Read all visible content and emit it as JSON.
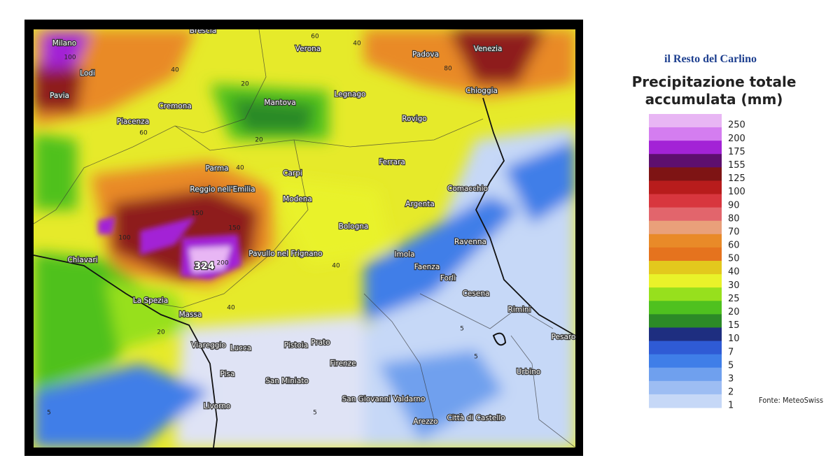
{
  "brand": "il Resto del Carlino",
  "title": "Precipitazione totale accumulata (mm)",
  "source": "Fonte: MeteoSwiss",
  "legend": [
    {
      "value": 250,
      "color": "#e8b6f4"
    },
    {
      "value": 200,
      "color": "#d47df0"
    },
    {
      "value": 175,
      "color": "#a323d6"
    },
    {
      "value": 155,
      "color": "#5e0f6e"
    },
    {
      "value": 125,
      "color": "#7e1414"
    },
    {
      "value": 100,
      "color": "#b81c1c"
    },
    {
      "value": 90,
      "color": "#d8363e"
    },
    {
      "value": 80,
      "color": "#e2656c"
    },
    {
      "value": 70,
      "color": "#e9a07a"
    },
    {
      "value": 60,
      "color": "#e98a28"
    },
    {
      "value": 50,
      "color": "#e5731e"
    },
    {
      "value": 40,
      "color": "#e3c81d"
    },
    {
      "value": 30,
      "color": "#e9f22a"
    },
    {
      "value": 25,
      "color": "#97e01d"
    },
    {
      "value": 20,
      "color": "#4fc11f"
    },
    {
      "value": 15,
      "color": "#2c8a27"
    },
    {
      "value": 10,
      "color": "#1e2e80"
    },
    {
      "value": 7,
      "color": "#2f5bd5"
    },
    {
      "value": 5,
      "color": "#3f7ee8"
    },
    {
      "value": 3,
      "color": "#6fa0ee"
    },
    {
      "value": 2,
      "color": "#9dbdf3"
    },
    {
      "value": 1,
      "color": "#c6d8f7"
    }
  ],
  "map": {
    "max_value": 324,
    "cities": [
      "Brescia",
      "Milano",
      "Verona",
      "Padova",
      "Venezia",
      "Lodi",
      "Legnago",
      "Pavia",
      "Mantova",
      "Chioggia",
      "Cremona",
      "Rovigo",
      "Piacenza",
      "Ferrara",
      "Parma",
      "Carpi",
      "Comacchio",
      "Reggio nell'Emilia",
      "Modena",
      "Argenta",
      "Bologna",
      "Ravenna",
      "Pavullo nel Frignano",
      "Imola",
      "Chiavari",
      "Faenza",
      "Forlì",
      "Cesena",
      "La Spezia",
      "Rimini",
      "Massa",
      "Pesaro",
      "Viareggio",
      "Lucca",
      "Pistoia",
      "Prato",
      "Firenze",
      "Urbino",
      "Pisa",
      "San Miniato",
      "San Giovanni Valdarno",
      "Livorno",
      "Città di Castello",
      "Arezzo"
    ],
    "contour_labels": [
      60,
      40,
      100,
      80,
      40,
      20,
      20,
      40,
      60,
      150,
      100,
      150,
      200,
      40,
      40,
      20,
      5,
      5,
      5,
      5
    ]
  }
}
